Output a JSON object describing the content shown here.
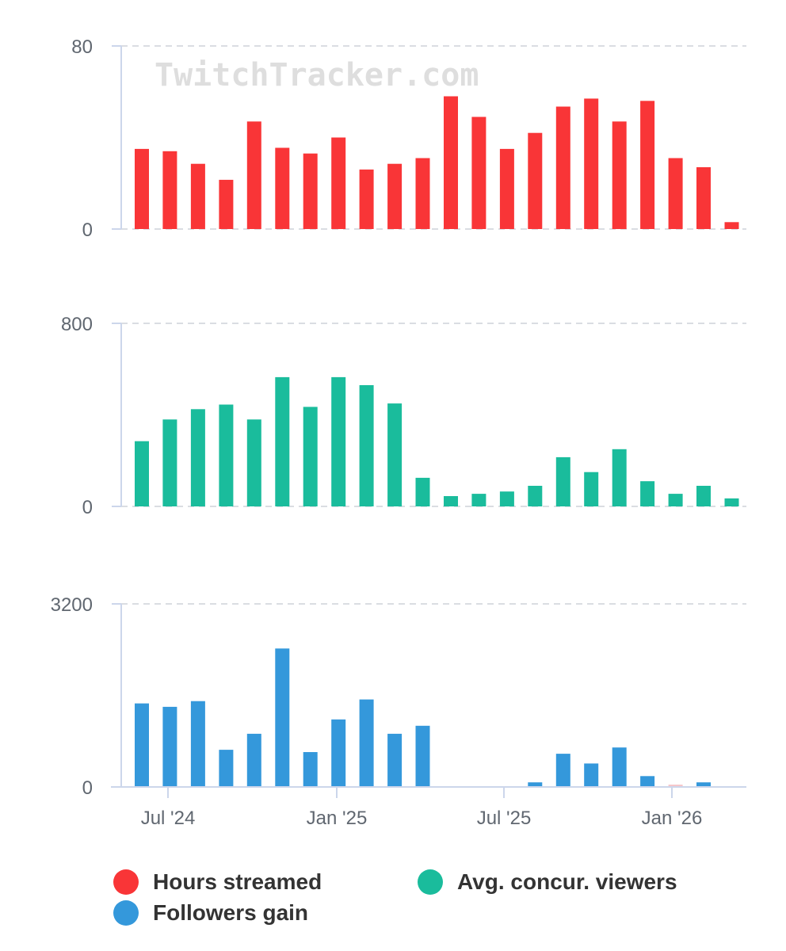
{
  "watermark": "TwitchTracker.com",
  "colors": {
    "hours": "#f93537",
    "viewers": "#1abc9c",
    "followers": "#3498db",
    "followers_faint": "#f6c4c8",
    "axis": "#ccd6eb",
    "grid": "#dadde2",
    "tick_text": "#606770"
  },
  "legend": [
    {
      "label": "Hours streamed",
      "color": "#f93537"
    },
    {
      "label": "Avg. concur. viewers",
      "color": "#1abc9c"
    },
    {
      "label": "Followers gain",
      "color": "#3498db"
    }
  ],
  "chart_data": [
    {
      "type": "bar",
      "title": "",
      "series": [
        {
          "name": "Hours streamed",
          "values": [
            35,
            34,
            28.5,
            21.5,
            47,
            35.5,
            33,
            40,
            26,
            28.5,
            31,
            58,
            49,
            35,
            42,
            53.5,
            57,
            47,
            56,
            31,
            27,
            3
          ]
        }
      ],
      "ylim": [
        0,
        80
      ],
      "yticks": [
        "0",
        "80"
      ]
    },
    {
      "type": "bar",
      "title": "",
      "series": [
        {
          "name": "Avg. concur. viewers",
          "values": [
            285,
            380,
            425,
            445,
            380,
            565,
            435,
            565,
            530,
            450,
            125,
            45,
            55,
            65,
            90,
            215,
            150,
            250,
            110,
            55,
            90,
            35
          ]
        }
      ],
      "ylim": [
        0,
        800
      ],
      "yticks": [
        "0",
        "800"
      ]
    },
    {
      "type": "bar",
      "title": "",
      "series": [
        {
          "name": "Followers gain",
          "values": [
            1460,
            1400,
            1500,
            650,
            930,
            2420,
            610,
            1180,
            1530,
            930,
            1070,
            0,
            0,
            0,
            80,
            580,
            410,
            690,
            190,
            40,
            80,
            0
          ]
        }
      ],
      "ylim": [
        0,
        3200
      ],
      "yticks": [
        "0",
        "3200"
      ],
      "xticks": [
        "Jul '24",
        "Jan '25",
        "Jul '25",
        "Jan '26"
      ],
      "xlabel": "",
      "ylabel": ""
    }
  ]
}
